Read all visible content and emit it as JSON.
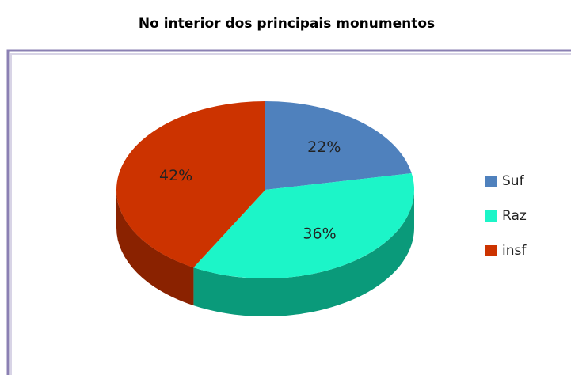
{
  "chart_data": {
    "type": "pie",
    "title": "No interior dos principais monumentos",
    "categories": [
      "Suf",
      "Raz",
      "insf"
    ],
    "values": [
      22,
      36,
      42
    ],
    "value_labels": [
      "22%",
      "36%",
      "42%"
    ],
    "colors": [
      "#4f81bd",
      "#1cf5c8",
      "#cc3300"
    ],
    "side_colors": [
      "#2f5587",
      "#0a9a7a",
      "#8a2200"
    ],
    "legend": "right",
    "start_angle": 0,
    "direction": "clockwise"
  }
}
